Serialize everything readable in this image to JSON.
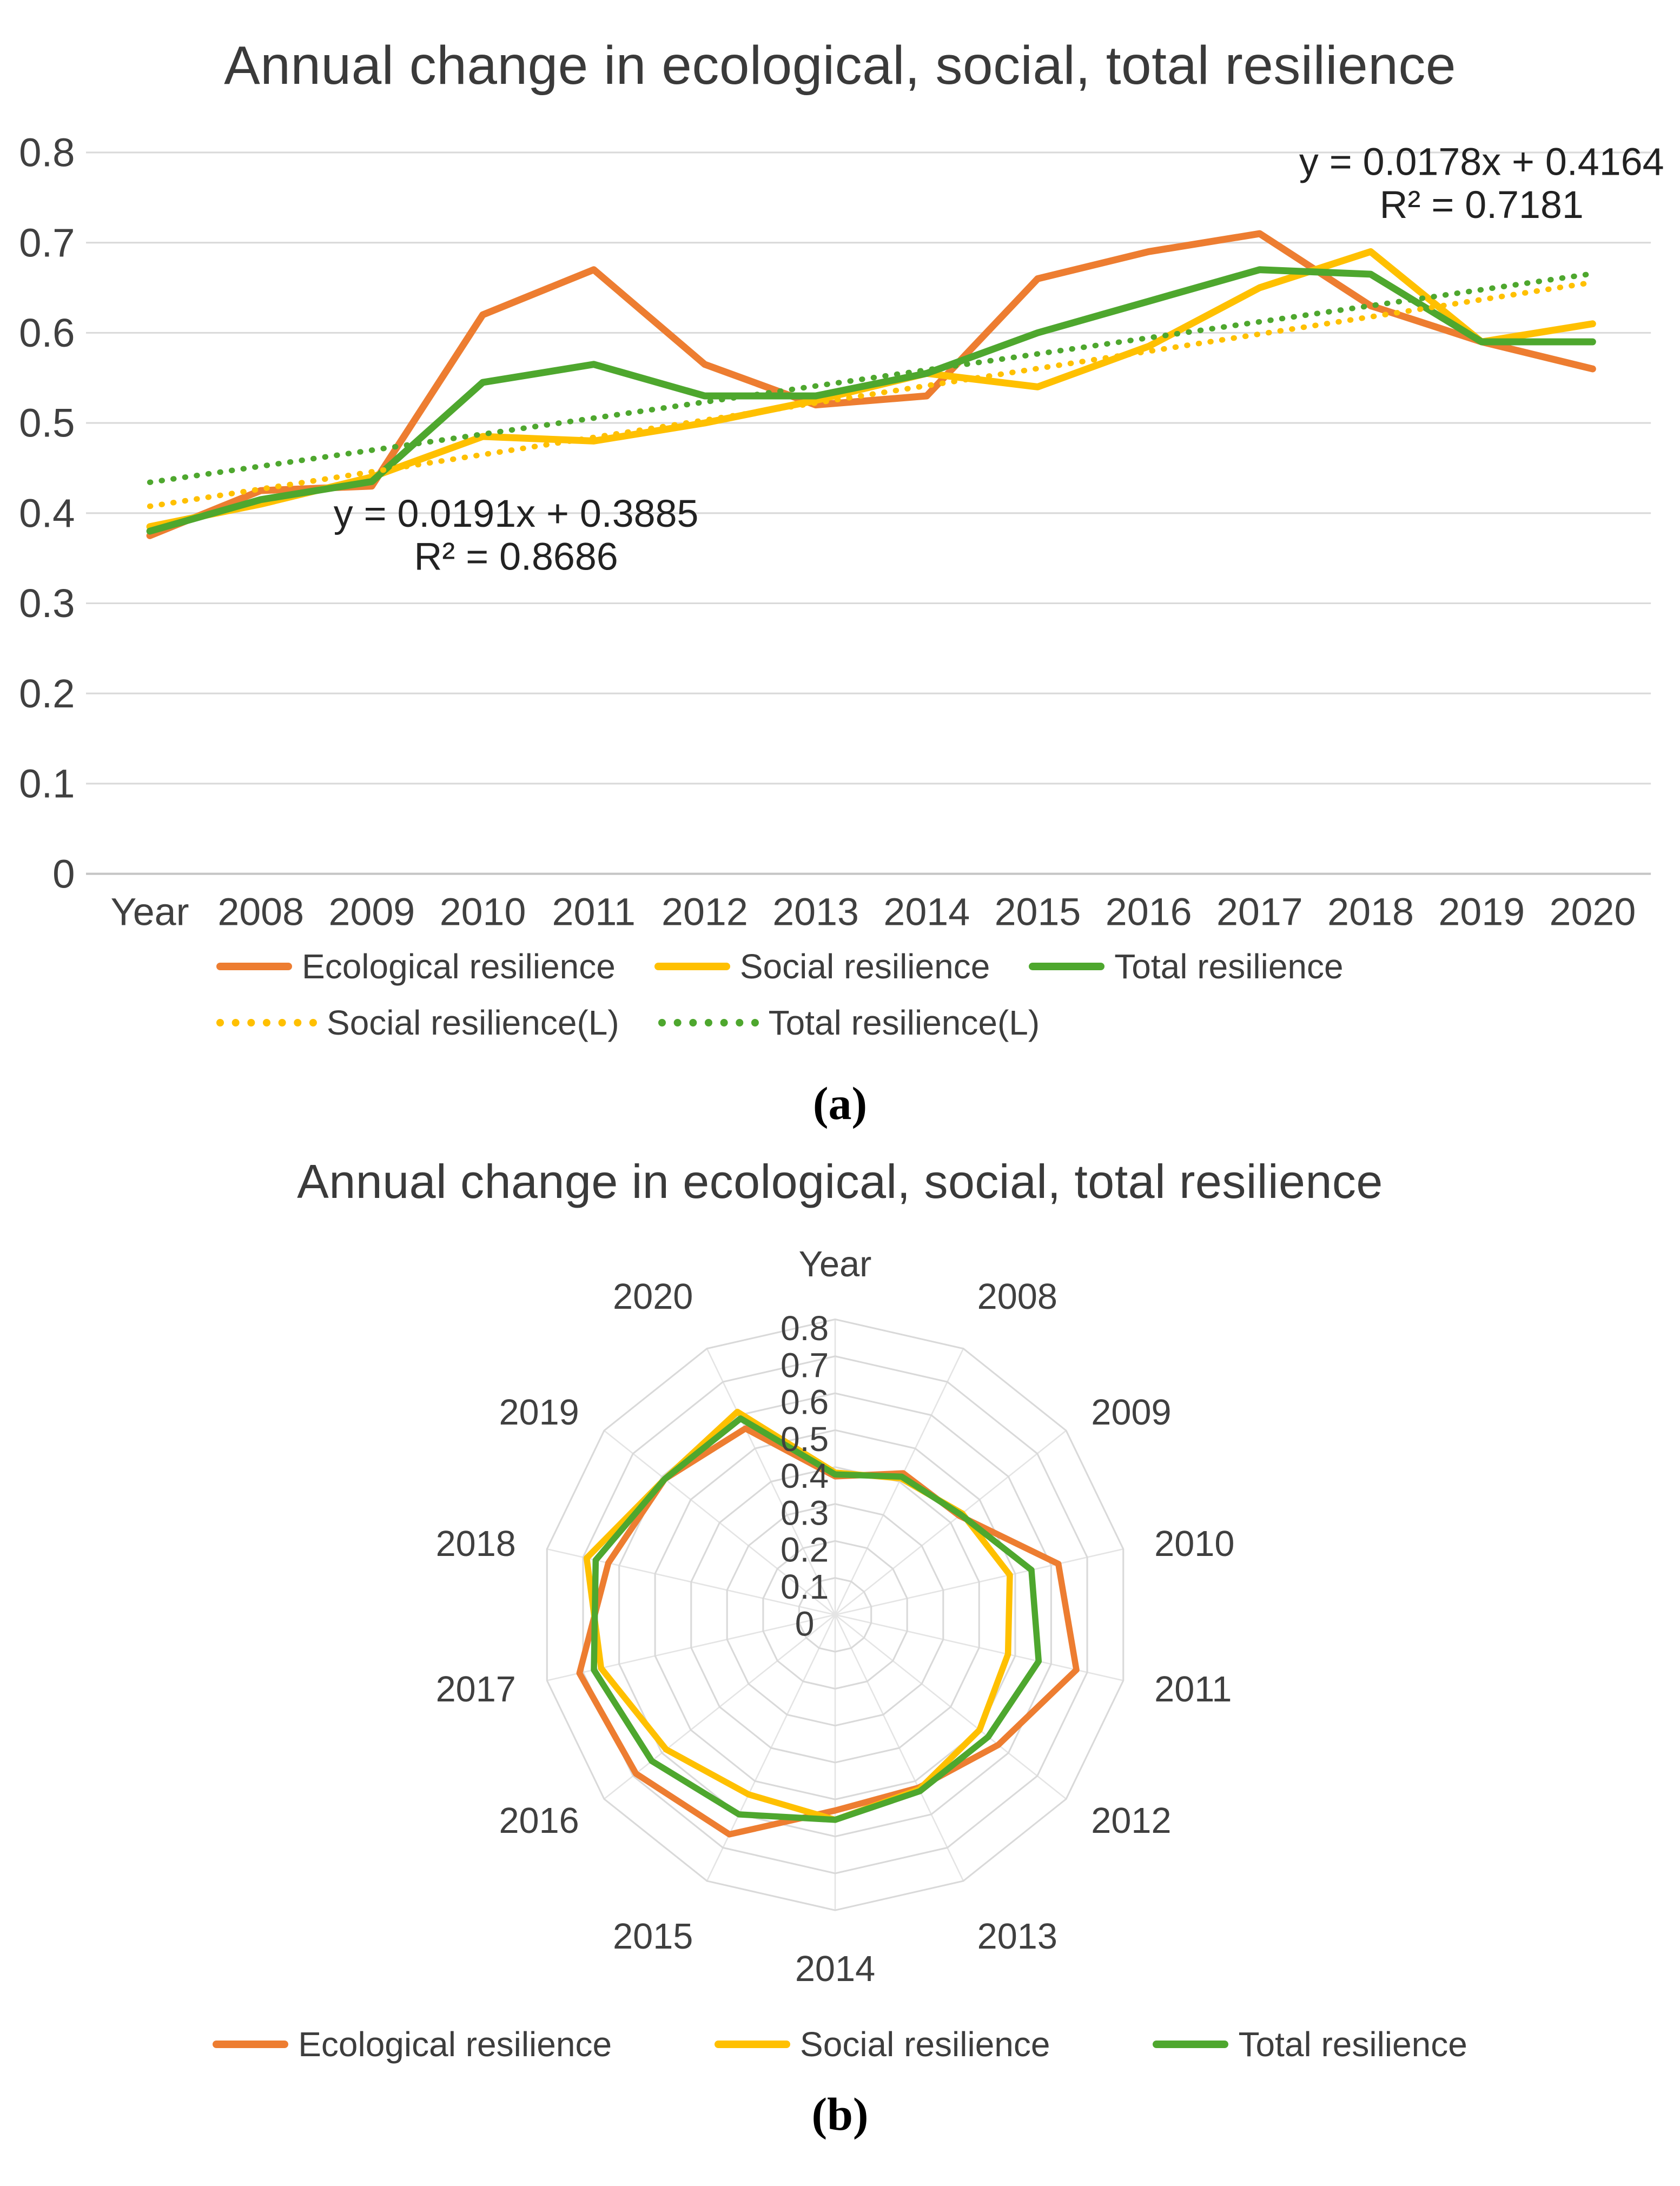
{
  "panel_labels": {
    "a": "(a)",
    "b": "(b)"
  },
  "colors": {
    "ecological": "#ED7D31",
    "social": "#FFC000",
    "total": "#4EA72E",
    "gridline": "#D9D9D9",
    "axis_text": "#404040"
  },
  "chart_data": [
    {
      "type": "line",
      "title": "Annual change in ecological, social, total resilience",
      "categories": [
        "Year",
        "2008",
        "2009",
        "2010",
        "2011",
        "2012",
        "2013",
        "2014",
        "2015",
        "2016",
        "2017",
        "2018",
        "2019",
        "2020"
      ],
      "ylim": [
        0,
        0.8
      ],
      "yticks": [
        "0",
        "0.1",
        "0.2",
        "0.3",
        "0.4",
        "0.5",
        "0.6",
        "0.7",
        "0.8"
      ],
      "grid": "horizontal",
      "legend_position": "bottom",
      "series": [
        {
          "name": "Ecological resilience",
          "color": "#ED7D31",
          "style": "solid",
          "values": [
            0.375,
            0.425,
            0.43,
            0.62,
            0.67,
            0.565,
            0.52,
            0.53,
            0.66,
            0.69,
            0.71,
            0.63,
            0.59,
            0.56
          ]
        },
        {
          "name": "Social resilience",
          "color": "#FFC000",
          "style": "solid",
          "values": [
            0.385,
            0.41,
            0.44,
            0.485,
            0.48,
            0.5,
            0.525,
            0.555,
            0.54,
            0.585,
            0.65,
            0.69,
            0.59,
            0.61
          ]
        },
        {
          "name": "Total resilience",
          "color": "#4EA72E",
          "style": "solid",
          "values": [
            0.38,
            0.415,
            0.435,
            0.545,
            0.565,
            0.53,
            0.53,
            0.555,
            0.6,
            0.635,
            0.67,
            0.665,
            0.59,
            0.59
          ]
        },
        {
          "name": "Social resilience(L)",
          "color": "#FFC000",
          "style": "dotted",
          "trend": {
            "slope": 0.0191,
            "intercept": 0.3885
          }
        },
        {
          "name": "Total resilience(L)",
          "color": "#4EA72E",
          "style": "dotted",
          "trend": {
            "slope": 0.0178,
            "intercept": 0.4164
          }
        }
      ],
      "annotations": [
        {
          "lines": [
            "y = 0.0178x + 0.4164",
            "R² = 0.7181"
          ],
          "x_index": 12.0,
          "y_value": 0.775
        },
        {
          "lines": [
            "y = 0.0191x + 0.3885",
            "R² = 0.8686"
          ],
          "x_index": 3.3,
          "y_value": 0.385
        }
      ]
    },
    {
      "type": "radar",
      "title": "Annual change in ecological, social, total resilience",
      "categories": [
        "Year",
        "2008",
        "2009",
        "2010",
        "2011",
        "2012",
        "2013",
        "2014",
        "2015",
        "2016",
        "2017",
        "2018",
        "2019",
        "2020"
      ],
      "rmax": 0.8,
      "rticks": [
        "0",
        "0.1",
        "0.2",
        "0.3",
        "0.4",
        "0.5",
        "0.6",
        "0.7",
        "0.8"
      ],
      "legend_position": "bottom",
      "series": [
        {
          "name": "Ecological resilience",
          "color": "#ED7D31",
          "style": "solid",
          "values": [
            0.375,
            0.425,
            0.43,
            0.62,
            0.67,
            0.565,
            0.52,
            0.53,
            0.66,
            0.69,
            0.71,
            0.63,
            0.59,
            0.56
          ]
        },
        {
          "name": "Social resilience",
          "color": "#FFC000",
          "style": "solid",
          "values": [
            0.385,
            0.41,
            0.44,
            0.485,
            0.48,
            0.5,
            0.525,
            0.555,
            0.54,
            0.585,
            0.65,
            0.69,
            0.59,
            0.61
          ]
        },
        {
          "name": "Total resilience",
          "color": "#4EA72E",
          "style": "solid",
          "values": [
            0.38,
            0.415,
            0.435,
            0.545,
            0.565,
            0.53,
            0.53,
            0.555,
            0.6,
            0.635,
            0.67,
            0.665,
            0.59,
            0.59
          ]
        }
      ]
    }
  ]
}
